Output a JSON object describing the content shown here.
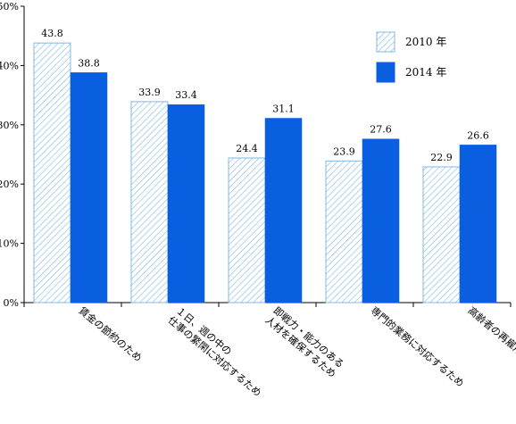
{
  "chart_data": {
    "type": "bar",
    "title": "",
    "xlabel": "",
    "ylabel": "",
    "ylim": [
      0,
      50
    ],
    "yticks": [
      "0%",
      "10%",
      "20%",
      "30%",
      "40%",
      "50%"
    ],
    "grid": false,
    "legend_position": "top-right",
    "categories": [
      [
        "賃金の節約のため"
      ],
      [
        "１日、週の中の",
        "仕事の繁閑に対応するため"
      ],
      [
        "即戦力・能力のある",
        "人材を確保するため"
      ],
      [
        "専門的業務に対応するため"
      ],
      [
        "高齢者の再雇用対策のため"
      ]
    ],
    "series": [
      {
        "name": "2010 年",
        "values": [
          43.8,
          33.9,
          24.4,
          23.9,
          22.9
        ],
        "labels": [
          "43.8",
          "33.9",
          "24.4",
          "23.9",
          "22.9"
        ],
        "color": "#7fb8e0",
        "pattern": "hatched"
      },
      {
        "name": "2014 年",
        "values": [
          38.8,
          33.4,
          31.1,
          27.6,
          26.6
        ],
        "labels": [
          "38.8",
          "33.4",
          "31.1",
          "27.6",
          "26.6"
        ],
        "color": "#0a5fe0",
        "pattern": "solid"
      }
    ]
  }
}
